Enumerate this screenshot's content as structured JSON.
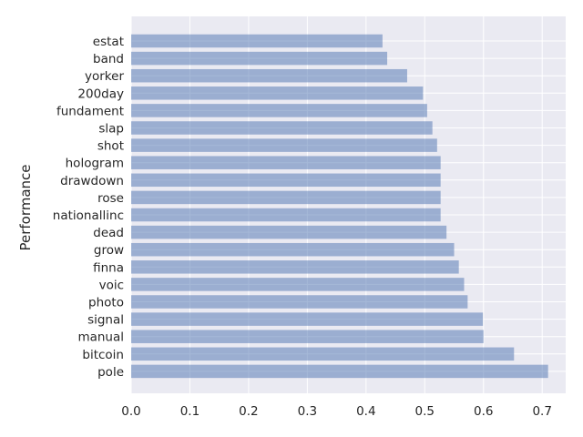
{
  "chart_data": {
    "type": "bar",
    "orientation": "horizontal",
    "categories": [
      "estat",
      "band",
      "yorker",
      "200day",
      "fundament",
      "slap",
      "shot",
      "hologram",
      "drawdown",
      "rose",
      "nationallinc",
      "dead",
      "grow",
      "finna",
      "voic",
      "photo",
      "signal",
      "manual",
      "bitcoin",
      "pole"
    ],
    "values": [
      0.428,
      0.436,
      0.47,
      0.497,
      0.504,
      0.513,
      0.521,
      0.527,
      0.527,
      0.527,
      0.527,
      0.537,
      0.55,
      0.558,
      0.567,
      0.573,
      0.599,
      0.6,
      0.652,
      0.71
    ],
    "title": "",
    "xlabel": "",
    "ylabel": "Performance",
    "xlim": [
      0,
      0.74
    ],
    "xticks": [
      "0.0",
      "0.1",
      "0.2",
      "0.3",
      "0.4",
      "0.5",
      "0.6",
      "0.7"
    ],
    "grid": true,
    "colors": {
      "bar": "#4c72b0",
      "background": "#eaeaf2",
      "grid": "#ffffff"
    }
  }
}
